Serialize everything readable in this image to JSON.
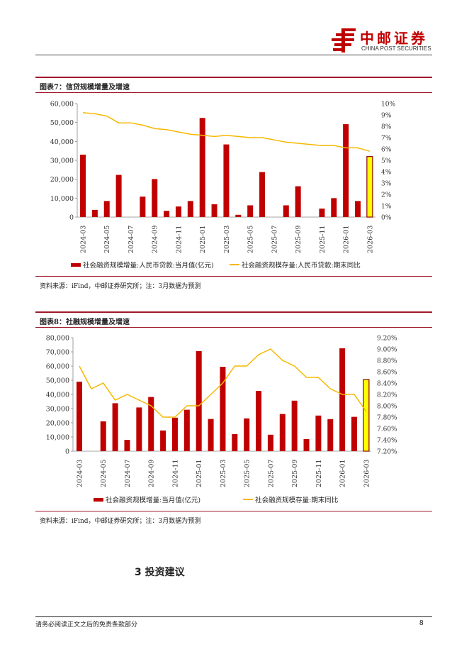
{
  "header": {
    "logo_cn": "中邮证券",
    "logo_en": "CHINA POST SECURITIES",
    "brand_color": "#C00000"
  },
  "colors": {
    "bar": "#C00000",
    "line": "#F5B800",
    "forecast_fill": "#FFFF00",
    "forecast_stroke": "#8B0000",
    "rule": "#A0182A"
  },
  "figures": [
    {
      "title": "图表7：信贷规模增量及增速",
      "source": "资料来源：iFind，中邮证券研究所；注：3月数据为预测",
      "legend": [
        "社会融资规模增量:人民币贷款:当月值(亿元)",
        "社会融资规模存量:人民币贷款:期末同比"
      ]
    },
    {
      "title": "图表8：社融规模增量及增速",
      "source": "资料来源：iFind，中邮证券研究所；注：3月数据为预测",
      "legend": [
        "社会融资规模增量:当月值(亿元)",
        "社会融资规模存量:期末同比"
      ]
    }
  ],
  "chart_data": [
    {
      "type": "bar+line",
      "title": "图表7：信贷规模增量及增速",
      "categories": [
        "2024-03",
        "2024-04",
        "2024-05",
        "2024-06",
        "2024-07",
        "2024-08",
        "2024-09",
        "2024-10",
        "2024-11",
        "2024-12",
        "2025-01",
        "2025-02",
        "2025-03",
        "2025-04",
        "2025-05",
        "2025-06",
        "2025-07",
        "2025-08",
        "2025-09",
        "2025-10",
        "2025-11",
        "2025-12",
        "2026-01",
        "2026-02",
        "2026-03"
      ],
      "x_tick_labels": [
        "2024-03",
        "2024-05",
        "2024-07",
        "2024-09",
        "2024-11",
        "2025-01",
        "2025-03",
        "2025-05",
        "2025-07",
        "2025-09",
        "2025-11",
        "2026-01",
        "2026-03"
      ],
      "series": [
        {
          "name": "社会融资规模增量:人民币贷款:当月值(亿元)",
          "type": "bar",
          "axis": "left",
          "values": [
            33000,
            3800,
            8500,
            22300,
            0,
            10800,
            20100,
            3300,
            5600,
            8500,
            52400,
            6800,
            38400,
            1200,
            6200,
            23800,
            0,
            6200,
            16300,
            0,
            4500,
            10000,
            49100,
            8500,
            32000
          ]
        },
        {
          "name": "社会融资规模存量:人民币贷款:期末同比",
          "type": "line",
          "axis": "right",
          "unit": "%",
          "values": [
            9.2,
            9.1,
            8.9,
            8.3,
            8.3,
            8.1,
            7.8,
            7.7,
            7.5,
            7.3,
            7.2,
            7.1,
            7.2,
            7.1,
            7.0,
            7.0,
            6.8,
            6.6,
            6.5,
            6.4,
            6.3,
            6.3,
            6.1,
            6.1,
            5.8
          ]
        }
      ],
      "forecast_last": true,
      "ylim_left": [
        0,
        60000
      ],
      "yticks_left": [
        "0",
        "10,000",
        "20,000",
        "30,000",
        "40,000",
        "50,000",
        "60,000"
      ],
      "ylim_right": [
        0,
        10
      ],
      "yticks_right": [
        "0%",
        "1%",
        "2%",
        "3%",
        "4%",
        "5%",
        "6%",
        "7%",
        "8%",
        "9%",
        "10%"
      ],
      "grid": false,
      "legend_position": "bottom"
    },
    {
      "type": "bar+line",
      "title": "图表8：社融规模增量及增速",
      "categories": [
        "2024-03",
        "2024-04",
        "2024-05",
        "2024-06",
        "2024-07",
        "2024-08",
        "2024-09",
        "2024-10",
        "2024-11",
        "2024-12",
        "2025-01",
        "2025-02",
        "2025-03",
        "2025-04",
        "2025-05",
        "2025-06",
        "2025-07",
        "2025-08",
        "2025-09",
        "2025-10",
        "2025-11",
        "2025-12",
        "2026-01",
        "2026-02",
        "2026-03"
      ],
      "x_tick_labels": [
        "2024-03",
        "2024-05",
        "2024-07",
        "2024-09",
        "2024-11",
        "2025-01",
        "2025-03",
        "2025-05",
        "2025-07",
        "2025-09",
        "2025-11",
        "2026-01",
        "2026-03"
      ],
      "series": [
        {
          "name": "社会融资规模增量:当月值(亿元)",
          "type": "bar",
          "axis": "left",
          "values": [
            49000,
            0,
            21000,
            33800,
            8000,
            30800,
            38200,
            14600,
            23600,
            29200,
            70500,
            22700,
            59500,
            12000,
            23100,
            42500,
            11600,
            26200,
            35600,
            8500,
            25100,
            22600,
            72500,
            24200,
            50500
          ]
        },
        {
          "name": "社会融资规模存量:期末同比",
          "type": "line",
          "axis": "right",
          "unit": "%",
          "values": [
            8.7,
            8.3,
            8.4,
            8.1,
            8.2,
            8.1,
            8.0,
            7.8,
            7.8,
            8.0,
            8.0,
            8.2,
            8.4,
            8.7,
            8.7,
            8.9,
            9.0,
            8.8,
            8.7,
            8.5,
            8.5,
            8.3,
            8.2,
            8.2,
            7.9
          ]
        }
      ],
      "forecast_last": true,
      "ylim_left": [
        0,
        80000
      ],
      "yticks_left": [
        "0",
        "10,000",
        "20,000",
        "30,000",
        "40,000",
        "50,000",
        "60,000",
        "70,000",
        "80,000"
      ],
      "ylim_right": [
        7.2,
        9.2
      ],
      "yticks_right": [
        "7.20%",
        "7.40%",
        "7.60%",
        "7.80%",
        "8.00%",
        "8.20%",
        "8.40%",
        "8.60%",
        "8.80%",
        "9.00%",
        "9.20%"
      ],
      "grid": false,
      "legend_position": "bottom"
    }
  ],
  "section": {
    "title": "3  投资建议"
  },
  "footer": {
    "disclaimer": "请务必阅读正文之后的免责条款部分",
    "page": "8"
  }
}
